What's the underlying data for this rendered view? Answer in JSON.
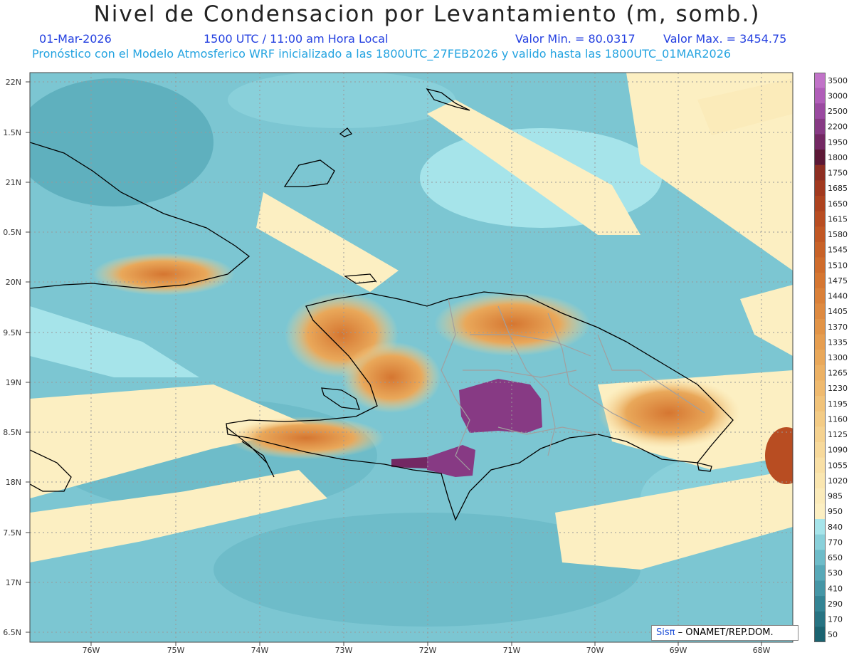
{
  "header": {
    "title": "Nivel de Condensacion por Levantamiento (m, somb.)",
    "date": "01-Mar-2026",
    "time": "1500 UTC / 11:00 am Hora Local",
    "min_label": "Valor Min. = 80.0317",
    "max_label": "Valor Max. = 3454.75",
    "model_line": "Pronóstico con el Modelo Atmosferico WRF inicializado a las 1800UTC_27FEB2026 y valido hasta las  1800UTC_01MAR2026"
  },
  "axes": {
    "lat_ticks": [
      "22N",
      "1.5N",
      "21N",
      "0.5N",
      "20N",
      "9.5N",
      "19N",
      "8.5N",
      "18N",
      "7.5N",
      "17N",
      "6.5N"
    ],
    "lon_ticks": [
      "76W",
      "75W",
      "74W",
      "73W",
      "72W",
      "71W",
      "70W",
      "69W",
      "68W"
    ]
  },
  "legend": {
    "levels": [
      "3500",
      "3000",
      "2500",
      "2200",
      "1950",
      "1800",
      "1750",
      "1685",
      "1650",
      "1615",
      "1580",
      "1545",
      "1510",
      "1475",
      "1440",
      "1405",
      "1370",
      "1335",
      "1300",
      "1265",
      "1230",
      "1195",
      "1160",
      "1125",
      "1090",
      "1055",
      "1020",
      "985",
      "950",
      "840",
      "770",
      "650",
      "530",
      "410",
      "290",
      "170",
      "50"
    ],
    "colors": [
      "#c173c8",
      "#b05eb8",
      "#9a4aa0",
      "#873a84",
      "#732863",
      "#5c1836",
      "#8d2e22",
      "#a1391f",
      "#ad431f",
      "#b84d22",
      "#c15724",
      "#c86228",
      "#cf6c2c",
      "#d57631",
      "#da8038",
      "#de8a40",
      "#e29447",
      "#e69e50",
      "#e9a85a",
      "#ecb164",
      "#efba6f",
      "#f1c37a",
      "#f3cb85",
      "#f5d290",
      "#f7d99b",
      "#f9e0a6",
      "#fae6b0",
      "#fbebba",
      "#fcefc2",
      "#a6e4ea",
      "#89d0da",
      "#6ebcc9",
      "#58a9b8",
      "#4596a6",
      "#348494",
      "#277382",
      "#1b6370"
    ]
  },
  "credit": {
    "sis": "Sisπ",
    "org": "– ONAMET/REP.DOM."
  }
}
